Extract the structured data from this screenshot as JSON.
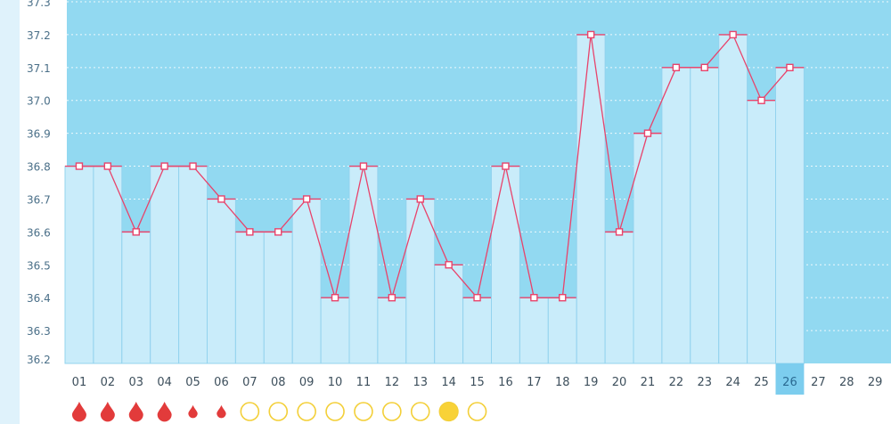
{
  "colors": {
    "plot_bg": "#92d9f1",
    "bar_fill": "#c9ecfa",
    "bar_edge": "#93d3ee",
    "line": "#e8436b",
    "marker_fill": "#ffffff",
    "page_bg": "#dff2fb",
    "today_highlight": "#7ccdee",
    "flow_drop": "#e23b3b",
    "ring": "#f3cf38",
    "ring_filled": "#f8d237"
  },
  "chart_data": {
    "type": "bar",
    "title": "",
    "xlabel": "",
    "ylabel": "",
    "ylim": [
      36.2,
      37.3
    ],
    "y_ticks": [
      "36.2",
      "36.3",
      "36.4",
      "36.5",
      "36.6",
      "36.7",
      "36.8",
      "36.9",
      "37.0",
      "37.1",
      "37.2",
      "37.3"
    ],
    "grid": true,
    "categories": [
      "01",
      "02",
      "03",
      "04",
      "05",
      "06",
      "07",
      "08",
      "09",
      "10",
      "11",
      "12",
      "13",
      "14",
      "15",
      "16",
      "17",
      "18",
      "19",
      "20",
      "21",
      "22",
      "23",
      "24",
      "25",
      "26",
      "27",
      "28",
      "29"
    ],
    "series": [
      {
        "values": [
          36.8,
          36.8,
          36.6,
          36.8,
          36.8,
          36.7,
          36.6,
          36.6,
          36.7,
          36.4,
          36.8,
          36.4,
          36.7,
          36.5,
          36.4,
          36.8,
          36.4,
          36.4,
          37.2,
          36.6,
          36.9,
          37.1,
          37.1,
          37.2,
          37.0,
          37.1,
          null,
          null,
          null
        ]
      }
    ],
    "today": "26",
    "day_markers": [
      "drop-large",
      "drop-large",
      "drop-large",
      "drop-large",
      "drop-small",
      "drop-small",
      "ring",
      "ring",
      "ring",
      "ring",
      "ring",
      "ring",
      "ring",
      "ring-filled",
      "ring",
      "none",
      "none",
      "none",
      "none",
      "none",
      "none",
      "none",
      "none",
      "none",
      "none",
      "none",
      "none",
      "none",
      "none"
    ]
  }
}
